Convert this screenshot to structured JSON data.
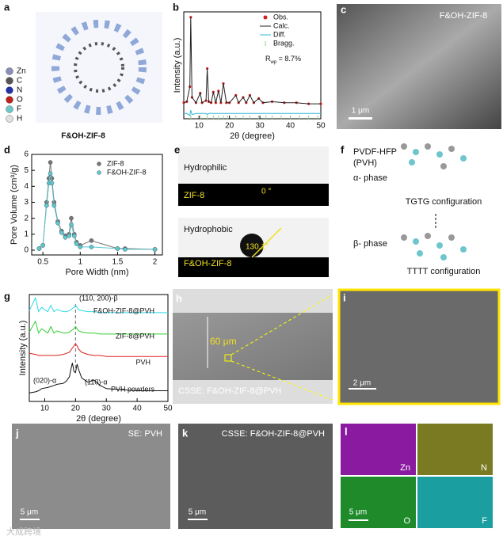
{
  "panels": {
    "a": {
      "letter": "a",
      "caption": "F&OH-ZIF-8",
      "atoms": [
        "Zn",
        "C",
        "N",
        "O",
        "F",
        "H"
      ],
      "atom_colors": [
        "#8a8fb8",
        "#555555",
        "#2232a8",
        "#c0201a",
        "#6cc6cc",
        "#e0e0e0"
      ]
    },
    "c": {
      "letter": "c",
      "label": "F&OH-ZIF-8",
      "scale": "1 μm"
    },
    "e": {
      "letter": "e",
      "top_label": "Hydrophilic",
      "top_sample": "ZIF-8",
      "top_angle": "0 °",
      "bottom_label": "Hydrophobic",
      "bottom_sample": "F&OH-ZIF-8",
      "bottom_angle": "130.1°"
    },
    "f": {
      "letter": "f",
      "name": "PVDF-HFP",
      "abbr": "(PVH)",
      "alpha": "α- phase",
      "alpha_conf": "TGTG configuration",
      "beta": "β- phase",
      "beta_conf": "TTTT configuration"
    },
    "h": {
      "letter": "h",
      "thickness": "60 μm",
      "label": "CSSE: F&OH-ZIF-8@PVH"
    },
    "i": {
      "letter": "i",
      "scale": "2 μm"
    },
    "j": {
      "letter": "j",
      "label": "SE: PVH",
      "scale": "5 μm"
    },
    "k": {
      "letter": "k",
      "label": "CSSE: F&OH-ZIF-8@PVH",
      "scale": "5 μm"
    },
    "l": {
      "letter": "l",
      "elements": [
        "Zn",
        "N",
        "O",
        "F"
      ],
      "colors": [
        "#8a1aa0",
        "#7a7a22",
        "#1e8a2a",
        "#1a9ea0"
      ],
      "scale": "5 μm"
    }
  },
  "watermark": "大成跨境",
  "chart_data": [
    {
      "type": "line",
      "panel": "b",
      "xlabel": "2θ (degree)",
      "ylabel": "Intensity (a.u.)",
      "annotation": "R",
      "annotation_sub": "wp",
      "annotation_rest": " = 8.7%",
      "xlim": [
        5,
        50
      ],
      "xticks": [
        10,
        20,
        30,
        40,
        50
      ],
      "ylim": [
        0,
        100
      ],
      "x": [
        5,
        6,
        7,
        7.3,
        7.7,
        9,
        10.4,
        11,
        12.3,
        12.7,
        13.2,
        14,
        14.7,
        15.5,
        16.4,
        17.2,
        18,
        19,
        20,
        22.1,
        23,
        24.5,
        25.5,
        26.7,
        28,
        29.6,
        31,
        34,
        38,
        42,
        46,
        50
      ],
      "series": [
        {
          "name": "Obs.",
          "color": "#d42020",
          "marker": true,
          "values": [
            15,
            16,
            30,
            95,
            20,
            15,
            24,
            15,
            17,
            47,
            16,
            15,
            25,
            15,
            26,
            15,
            33,
            15,
            15,
            22,
            15,
            20,
            15,
            22,
            15,
            19,
            15,
            16,
            15,
            15,
            14,
            14
          ]
        },
        {
          "name": "Calc.",
          "color": "#222222",
          "values": [
            15,
            16,
            30,
            95,
            20,
            15,
            24,
            15,
            17,
            47,
            16,
            15,
            25,
            15,
            26,
            15,
            33,
            15,
            15,
            22,
            15,
            20,
            15,
            22,
            15,
            19,
            15,
            16,
            15,
            15,
            14,
            14
          ]
        },
        {
          "name": "Diff.",
          "color": "#35b8d8",
          "values": [
            5,
            5,
            3,
            8,
            4,
            5,
            5,
            5,
            5,
            4,
            5,
            5,
            5,
            5,
            5,
            5,
            5,
            5,
            5,
            5,
            5,
            5,
            5,
            5,
            5,
            5,
            5,
            5,
            5,
            5,
            5,
            5
          ]
        }
      ],
      "bragg": {
        "name": "Bragg.",
        "color": "#8fcf8f",
        "level": 1,
        "x": [
          7.3,
          10.4,
          12.7,
          14.7,
          16.4,
          18,
          19.4,
          22.1,
          24.5,
          26.7,
          29.6,
          32,
          34,
          37,
          40,
          43,
          46,
          49
        ]
      }
    },
    {
      "type": "line",
      "panel": "d",
      "xlabel": "Pore Width (nm)",
      "ylabel": "Pore Volume (cm³/g)",
      "xlim": [
        0.35,
        2.1
      ],
      "xticks": [
        0.5,
        1.0,
        1.5,
        2.0
      ],
      "ylim": [
        -0.3,
        6
      ],
      "yticks": [
        0,
        1,
        2,
        3,
        4,
        5,
        6
      ],
      "x": [
        0.45,
        0.5,
        0.55,
        0.58,
        0.6,
        0.62,
        0.65,
        0.7,
        0.75,
        0.8,
        0.85,
        0.88,
        0.92,
        0.95,
        1.0,
        1.15,
        1.5,
        1.6,
        2.0
      ],
      "series": [
        {
          "name": "ZIF-8",
          "color": "#777777",
          "marker": true,
          "values": [
            0.1,
            0.3,
            3.0,
            4.5,
            5.5,
            4.5,
            3.0,
            1.8,
            1.2,
            0.9,
            1.0,
            2.0,
            1.0,
            0.5,
            0.3,
            0.6,
            0.1,
            0.1,
            0.05
          ]
        },
        {
          "name": "F&OH-ZIF-8",
          "color": "#5cc8d0",
          "marker": true,
          "values": [
            0.1,
            0.3,
            2.8,
            4.2,
            4.8,
            4.2,
            2.8,
            1.7,
            1.1,
            0.8,
            0.9,
            1.6,
            0.9,
            0.4,
            0.2,
            0.2,
            0.1,
            0.05,
            0.05
          ]
        }
      ]
    },
    {
      "type": "line",
      "panel": "g",
      "xlabel": "2θ (degree)",
      "ylabel": "Intensity (a.u.)",
      "xlim": [
        5,
        50
      ],
      "xticks": [
        10,
        20,
        30,
        40,
        50
      ],
      "ylim": [
        0,
        100
      ],
      "dashed_x": 20,
      "annotations": [
        "(110, 200)-β",
        "(020)-α",
        "(110)-α"
      ],
      "x": [
        5,
        7,
        8,
        9,
        11,
        12,
        13,
        14,
        16,
        17,
        18,
        18.5,
        19,
        19.5,
        20,
        20.5,
        21,
        22,
        24,
        26,
        28,
        30,
        35,
        40,
        45,
        50
      ],
      "series": [
        {
          "name": "PVH powders",
          "color": "#111111",
          "values": [
            8,
            9,
            10,
            12,
            13,
            14,
            15,
            16,
            17,
            19,
            23,
            30,
            36,
            28,
            27,
            35,
            30,
            22,
            18,
            20,
            15,
            12,
            11,
            10,
            10,
            10
          ]
        },
        {
          "name": "PVH",
          "color": "#e02020",
          "values": [
            45,
            44,
            43,
            43,
            43,
            43,
            43,
            43,
            44,
            45,
            46,
            48,
            50,
            52,
            54,
            52,
            49,
            46,
            44,
            43,
            43,
            42,
            42,
            42,
            42,
            42
          ]
        },
        {
          "name": "ZIF-8@PVH",
          "color": "#30d030",
          "values": [
            65,
            75,
            64,
            68,
            64,
            70,
            64,
            66,
            64,
            64,
            65,
            66,
            67,
            68,
            70,
            68,
            66,
            65,
            64,
            64,
            63,
            63,
            63,
            63,
            63,
            63
          ]
        },
        {
          "name": "F&OH-ZIF-8@PVH",
          "color": "#30d8e8",
          "values": [
            85,
            97,
            84,
            88,
            84,
            90,
            84,
            86,
            84,
            84,
            85,
            86,
            87,
            88,
            90,
            88,
            86,
            85,
            84,
            84,
            83,
            83,
            83,
            83,
            83,
            83
          ]
        }
      ]
    }
  ]
}
